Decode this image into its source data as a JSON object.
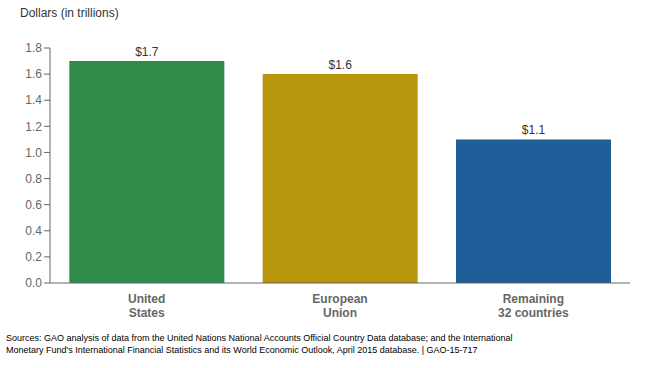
{
  "chart_data": {
    "type": "bar",
    "ylabel": "Dollars (in trillions)",
    "categories": [
      "United\nStates",
      "European\nUnion",
      "Remaining\n32 countries"
    ],
    "values": [
      1.7,
      1.6,
      1.1
    ],
    "value_labels": [
      "$1.7",
      "$1.6",
      "$1.1"
    ],
    "data_labels": true,
    "colors": [
      "#2e8b4a",
      "#b8960c",
      "#1f5f99"
    ],
    "ylim": [
      0,
      1.8
    ],
    "yticks": [
      {
        "value": 0,
        "label": "0.0"
      },
      0.2,
      0.4,
      0.6,
      0.8,
      {
        "value": 1,
        "label": "1.0"
      },
      1.2,
      1.4,
      1.6,
      1.8
    ],
    "grid": false,
    "annotations": [
      "Sources: GAO analysis of data from the United Nations National Accounts Official Country Data database; and the International\nMonetary Fund's International Financial Statistics and its World Economic Outlook, April 2015 database.  |  GAO-15-717"
    ]
  }
}
